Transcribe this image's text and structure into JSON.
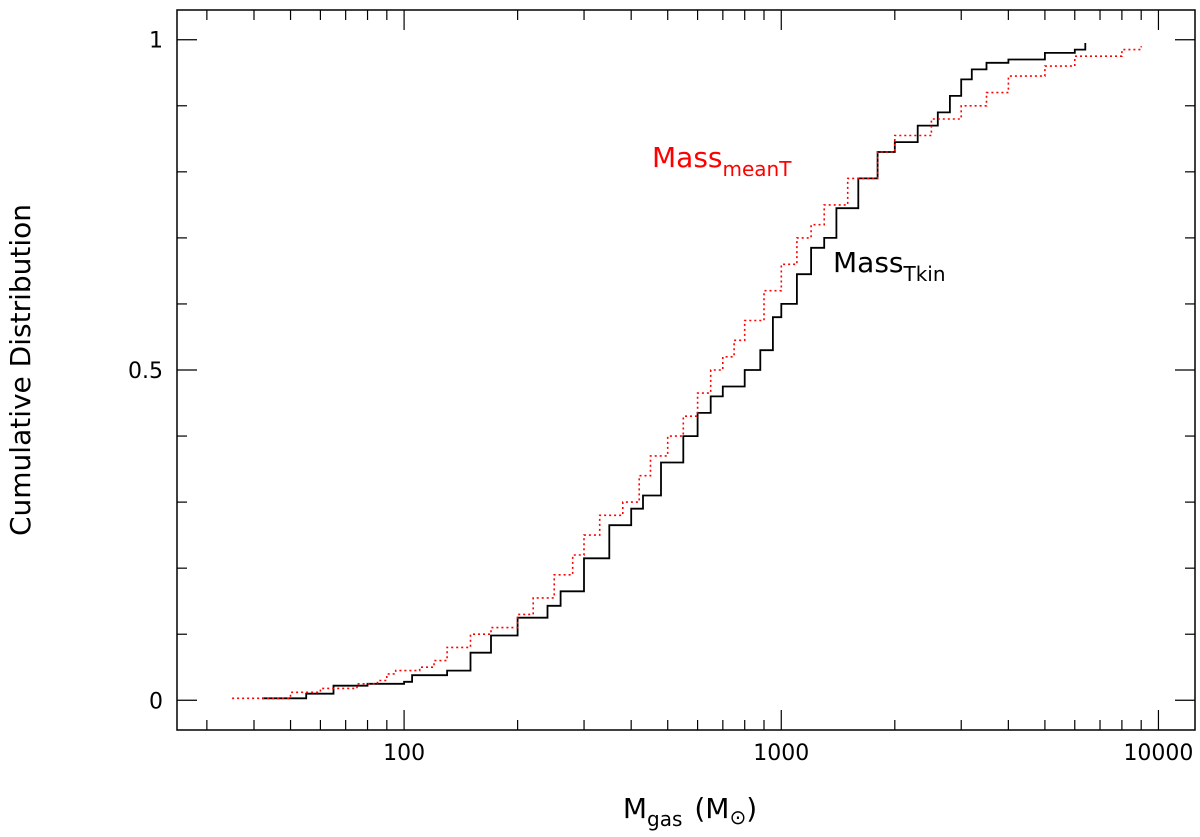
{
  "chart_data": {
    "type": "line",
    "xlabel": {
      "main": "M",
      "sub": "gas",
      "unit_open": "(M",
      "unit_symbol": "⊙",
      "unit_close": ")"
    },
    "ylabel": "Cumulative Distribution",
    "x_scale": "log",
    "xlim": [
      25,
      12500
    ],
    "ylim": [
      -0.045,
      1.045
    ],
    "x_ticks": [
      100,
      1000,
      10000
    ],
    "x_tick_labels": [
      "100",
      "1000",
      "10000"
    ],
    "y_ticks": [
      0,
      0.5,
      1
    ],
    "y_tick_labels": [
      "0",
      "0.5",
      "1"
    ],
    "grid": false,
    "legend": "inline labels",
    "series": [
      {
        "name": "Mass_Tkin",
        "label_main": "Mass",
        "label_sub": "Tkin",
        "color": "#000000",
        "style": "solid",
        "x": [
          42,
          55,
          65,
          80,
          100,
          105,
          130,
          150,
          170,
          200,
          240,
          260,
          300,
          350,
          400,
          430,
          480,
          550,
          600,
          650,
          700,
          800,
          880,
          950,
          1000,
          1100,
          1200,
          1300,
          1400,
          1600,
          1800,
          2000,
          2300,
          2600,
          2800,
          3000,
          3200,
          3500,
          4000,
          5000,
          6000,
          6400
        ],
        "y": [
          0.003,
          0.01,
          0.022,
          0.025,
          0.028,
          0.038,
          0.045,
          0.072,
          0.098,
          0.125,
          0.143,
          0.165,
          0.215,
          0.265,
          0.29,
          0.31,
          0.36,
          0.4,
          0.435,
          0.46,
          0.475,
          0.5,
          0.53,
          0.58,
          0.6,
          0.645,
          0.685,
          0.7,
          0.745,
          0.79,
          0.83,
          0.845,
          0.87,
          0.89,
          0.915,
          0.94,
          0.955,
          0.965,
          0.97,
          0.98,
          0.985,
          0.995
        ]
      },
      {
        "name": "Mass_meanT",
        "label_main": "Mass",
        "label_sub": "meanT",
        "color": "#ff0000",
        "style": "dotted",
        "x": [
          35,
          50,
          60,
          75,
          85,
          90,
          95,
          110,
          120,
          130,
          150,
          170,
          200,
          220,
          250,
          280,
          300,
          330,
          380,
          420,
          450,
          500,
          550,
          600,
          650,
          700,
          750,
          800,
          900,
          1000,
          1100,
          1200,
          1300,
          1500,
          1800,
          2000,
          2500,
          3000,
          3500,
          4000,
          5000,
          6000,
          8000,
          9000
        ],
        "y": [
          0.003,
          0.012,
          0.018,
          0.025,
          0.03,
          0.04,
          0.045,
          0.05,
          0.06,
          0.08,
          0.1,
          0.11,
          0.13,
          0.155,
          0.19,
          0.22,
          0.25,
          0.28,
          0.3,
          0.34,
          0.37,
          0.4,
          0.43,
          0.465,
          0.5,
          0.52,
          0.545,
          0.575,
          0.62,
          0.66,
          0.7,
          0.72,
          0.75,
          0.79,
          0.83,
          0.855,
          0.88,
          0.9,
          0.92,
          0.945,
          0.96,
          0.975,
          0.985,
          0.99
        ]
      }
    ]
  }
}
